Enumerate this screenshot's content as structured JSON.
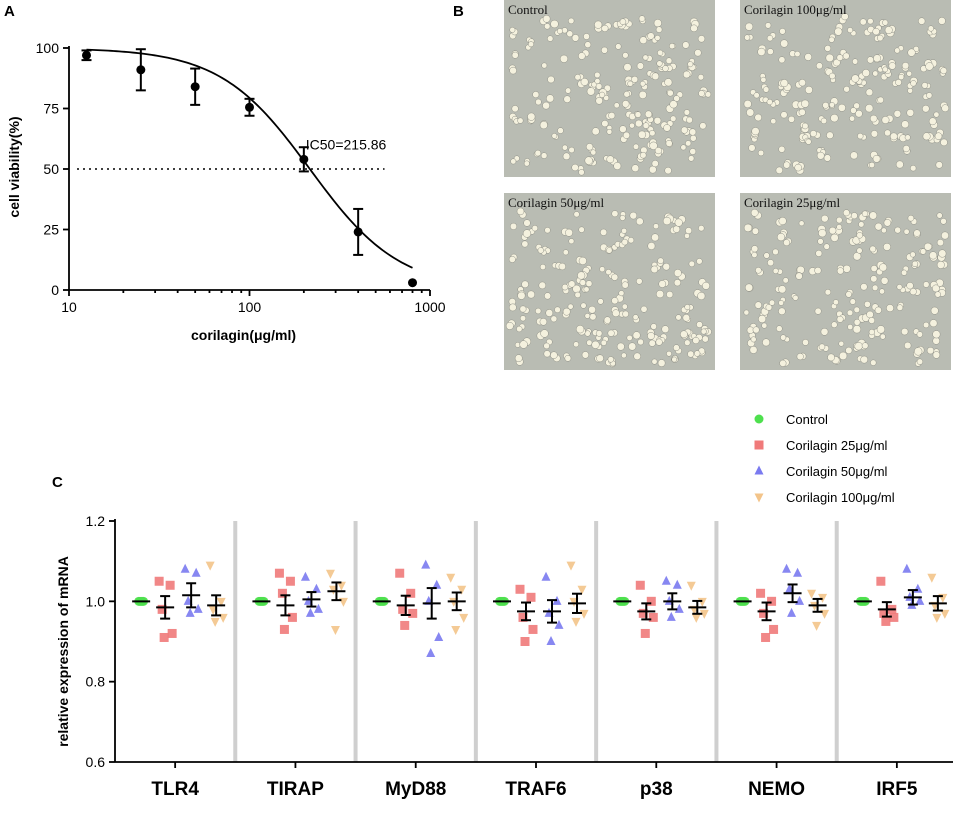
{
  "panel_labels": {
    "a": "A",
    "b": "B",
    "c": "C"
  },
  "chart_data": [
    {
      "type": "line",
      "panel": "A",
      "xscale": "log",
      "xlabel": "corilagin(μg/ml)",
      "ylabel": "cell viability(%)",
      "xlim": [
        10,
        1000
      ],
      "ylim": [
        0,
        100
      ],
      "x_ticks": [
        "10",
        "100",
        "1000"
      ],
      "y_ticks": [
        "0",
        "25",
        "50",
        "75",
        "100"
      ],
      "points": [
        {
          "x": 12.5,
          "y": 97,
          "err": 2
        },
        {
          "x": 25,
          "y": 91,
          "err": 8.5
        },
        {
          "x": 50,
          "y": 84,
          "err": 7.5
        },
        {
          "x": 100,
          "y": 75.5,
          "err": 3.5
        },
        {
          "x": 200,
          "y": 54,
          "err": 5
        },
        {
          "x": 400,
          "y": 24,
          "err": 9.5
        },
        {
          "x": 800,
          "y": 3,
          "err": 0
        }
      ],
      "fit": {
        "top": 100,
        "ic50": 215.86,
        "hill": 1.75
      },
      "reference_line": {
        "y": 50,
        "x_to": 560
      },
      "annotation": "IC50=215.86"
    },
    {
      "type": "scatter",
      "panel": "C",
      "ylabel": "relative expression of mRNA",
      "ylim": [
        0.6,
        1.2
      ],
      "y_ticks": [
        "0.6",
        "0.8",
        "1.0",
        "1.2"
      ],
      "categories": [
        "TLR4",
        "TIRAP",
        "MyD88",
        "TRAF6",
        "p38",
        "NEMO",
        "IRF5"
      ],
      "series": [
        {
          "name": "Control",
          "color": "#4ee04e",
          "marker": "circle",
          "values": [
            [
              1,
              1,
              1,
              1,
              1
            ],
            [
              1,
              1,
              1,
              1,
              1
            ],
            [
              1,
              1,
              1,
              1,
              1
            ],
            [
              1,
              1,
              1,
              1,
              1
            ],
            [
              1,
              1,
              1,
              1,
              1
            ],
            [
              1,
              1,
              1,
              1,
              1
            ],
            [
              1,
              1,
              1,
              1,
              1
            ]
          ],
          "mean": [
            1,
            1,
            1,
            1,
            1,
            1,
            1
          ],
          "sem": [
            0,
            0,
            0,
            0,
            0,
            0,
            0
          ]
        },
        {
          "name": "Corilagin 25μg/ml",
          "color": "#f07a7a",
          "marker": "square",
          "values": [
            [
              1.05,
              1.04,
              0.98,
              0.92,
              0.91
            ],
            [
              1.07,
              1.05,
              1.02,
              0.96,
              0.93
            ],
            [
              1.07,
              1.02,
              0.98,
              0.97,
              0.94
            ],
            [
              1.03,
              1.01,
              0.96,
              0.93,
              0.9
            ],
            [
              1.04,
              1.0,
              0.97,
              0.96,
              0.92
            ],
            [
              1.02,
              1.0,
              0.97,
              0.93,
              0.91
            ],
            [
              1.05,
              0.98,
              0.97,
              0.96,
              0.95
            ]
          ],
          "mean": [
            0.985,
            0.99,
            0.99,
            0.975,
            0.975,
            0.975,
            0.98
          ],
          "sem": [
            0.028,
            0.025,
            0.024,
            0.022,
            0.02,
            0.022,
            0.018
          ]
        },
        {
          "name": "Corilagin 50μg/ml",
          "color": "#7a7af0",
          "marker": "triangle",
          "values": [
            [
              1.08,
              1.07,
              1.0,
              0.98,
              0.97
            ],
            [
              1.06,
              1.03,
              1.0,
              0.98,
              0.97
            ],
            [
              1.09,
              1.04,
              1.0,
              0.91,
              0.87
            ],
            [
              1.06,
              1.0,
              0.97,
              0.94,
              0.9
            ],
            [
              1.05,
              1.04,
              1.0,
              0.98,
              0.96
            ],
            [
              1.08,
              1.07,
              1.03,
              1.0,
              0.97
            ],
            [
              1.08,
              1.03,
              1.01,
              1.0,
              0.99
            ]
          ],
          "mean": [
            1.015,
            1.005,
            0.995,
            0.975,
            1.0,
            1.02,
            1.01
          ],
          "sem": [
            0.03,
            0.018,
            0.038,
            0.028,
            0.02,
            0.022,
            0.018
          ]
        },
        {
          "name": "Corilagin 100μg/ml",
          "color": "#f3c48a",
          "marker": "triangle-down",
          "values": [
            [
              1.09,
              1.0,
              0.98,
              0.96,
              0.95
            ],
            [
              1.07,
              1.04,
              1.03,
              1.0,
              0.93
            ],
            [
              1.06,
              1.03,
              1.0,
              0.96,
              0.93
            ],
            [
              1.09,
              1.03,
              1.0,
              0.97,
              0.95
            ],
            [
              1.04,
              1.0,
              0.98,
              0.97,
              0.96
            ],
            [
              1.02,
              1.01,
              0.99,
              0.97,
              0.94
            ],
            [
              1.06,
              1.01,
              0.99,
              0.97,
              0.96
            ]
          ],
          "mean": [
            0.99,
            1.025,
            1.0,
            0.995,
            0.985,
            0.99,
            0.995
          ],
          "sem": [
            0.025,
            0.022,
            0.022,
            0.024,
            0.016,
            0.016,
            0.018
          ]
        }
      ]
    }
  ],
  "micrographs": [
    {
      "label": "Control"
    },
    {
      "label": "Corilagin 100μg/ml"
    },
    {
      "label": "Corilagin 50μg/ml"
    },
    {
      "label": "Corilagin 25μg/ml"
    }
  ]
}
